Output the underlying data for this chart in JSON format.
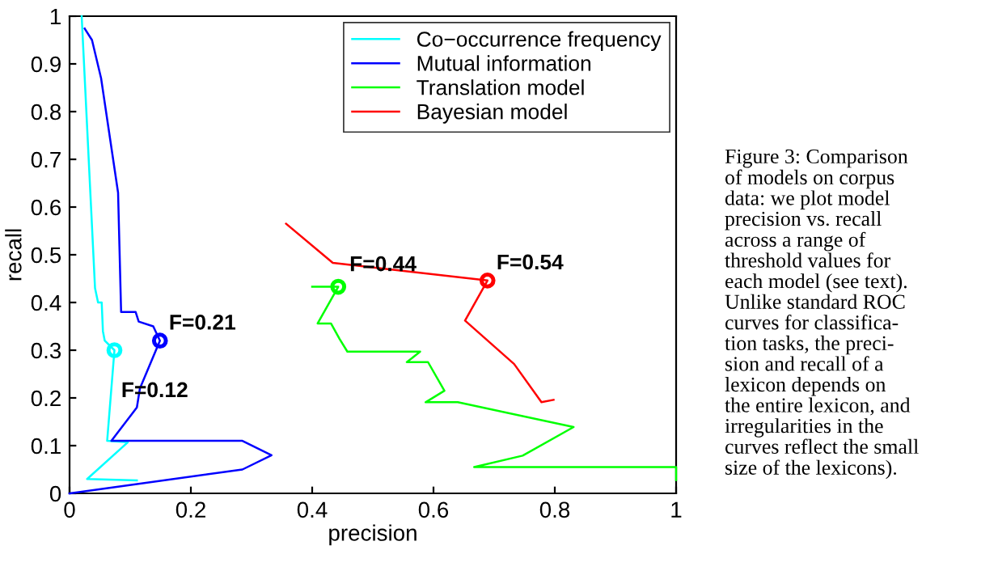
{
  "chart_data": {
    "type": "line",
    "xlabel": "precision",
    "ylabel": "recall",
    "xlim": [
      0,
      1
    ],
    "ylim": [
      0,
      1
    ],
    "xticks": [
      0,
      0.2,
      0.4,
      0.6,
      0.8,
      1
    ],
    "yticks": [
      0,
      0.1,
      0.2,
      0.3,
      0.4,
      0.5,
      0.6,
      0.7,
      0.8,
      0.9,
      1
    ],
    "grid": false,
    "legend": "top right",
    "marker": "none",
    "line_style": "solid",
    "series": [
      {
        "name": "Co−occurrence frequency",
        "color": "#00ffff",
        "x": [
          0.02,
          0.042,
          0.047,
          0.053,
          0.055,
          0.058,
          0.074,
          0.062,
          0.096,
          0.029,
          0.111
        ],
        "values": [
          1.0,
          0.43,
          0.4,
          0.4,
          0.34,
          0.32,
          0.3,
          0.11,
          0.107,
          0.03,
          0.027
        ]
      },
      {
        "name": "Mutual information",
        "color": "#0000ff",
        "x": [
          0.025,
          0.037,
          0.052,
          0.08,
          0.085,
          0.109,
          0.114,
          0.138,
          0.149,
          0.116,
          0.111,
          0.069,
          0.285,
          0.333,
          0.285,
          0
        ],
        "values": [
          0.974,
          0.95,
          0.87,
          0.63,
          0.38,
          0.38,
          0.36,
          0.35,
          0.32,
          0.22,
          0.18,
          0.11,
          0.11,
          0.08,
          0.05,
          0
        ]
      },
      {
        "name": "Translation model",
        "color": "#00ff00",
        "x": [
          0.4,
          0.443,
          0.409,
          0.431,
          0.445,
          0.458,
          0.578,
          0.556,
          0.591,
          0.618,
          0.587,
          0.64,
          0.831,
          0.747,
          0.667,
          1.0,
          1.0
        ],
        "values": [
          0.433,
          0.433,
          0.356,
          0.356,
          0.324,
          0.297,
          0.297,
          0.275,
          0.275,
          0.215,
          0.191,
          0.191,
          0.139,
          0.079,
          0.055,
          0.055,
          0.028
        ]
      },
      {
        "name": "Bayesian model",
        "color": "#ff0000",
        "x": [
          0.357,
          0.434,
          0.689,
          0.652,
          0.733,
          0.778,
          0.798
        ],
        "values": [
          0.565,
          0.483,
          0.446,
          0.362,
          0.271,
          0.191,
          0.196
        ]
      },
      {
        "type": "scatter",
        "marker": "circle",
        "color": "#00ffff",
        "x": [
          0.074
        ],
        "values": [
          0.3
        ]
      },
      {
        "type": "scatter",
        "marker": "circle",
        "color": "#0000ff",
        "x": [
          0.149
        ],
        "values": [
          0.32
        ]
      },
      {
        "type": "scatter",
        "marker": "circle",
        "color": "#00ff00",
        "x": [
          0.443
        ],
        "values": [
          0.433
        ]
      },
      {
        "type": "scatter",
        "marker": "circle",
        "color": "#ff0000",
        "x": [
          0.689
        ],
        "values": [
          0.446
        ]
      }
    ],
    "annotations": [
      {
        "text": "F=0.21",
        "x": 0.149,
        "y": 0.32
      },
      {
        "text": "F=0.12",
        "x": 0.074,
        "y": 0.3
      },
      {
        "text": "F=0.44",
        "x": 0.443,
        "y": 0.433
      },
      {
        "text": "F=0.54",
        "x": 0.689,
        "y": 0.446
      },
      "Figure 3: Comparison\nof models on corpus\ndata: we plot model\nprecision vs. recall\nacross a range of\nthreshold values for\neach model (see text).\nUnlike standard ROC\ncurves for classifica-\ntion tasks, the preci-\nsion and recall of a\nlexicon depends on\nthe entire lexicon, and\nirregularities in the\ncurves reflect the small\nsize of the lexicons)."
    ]
  }
}
